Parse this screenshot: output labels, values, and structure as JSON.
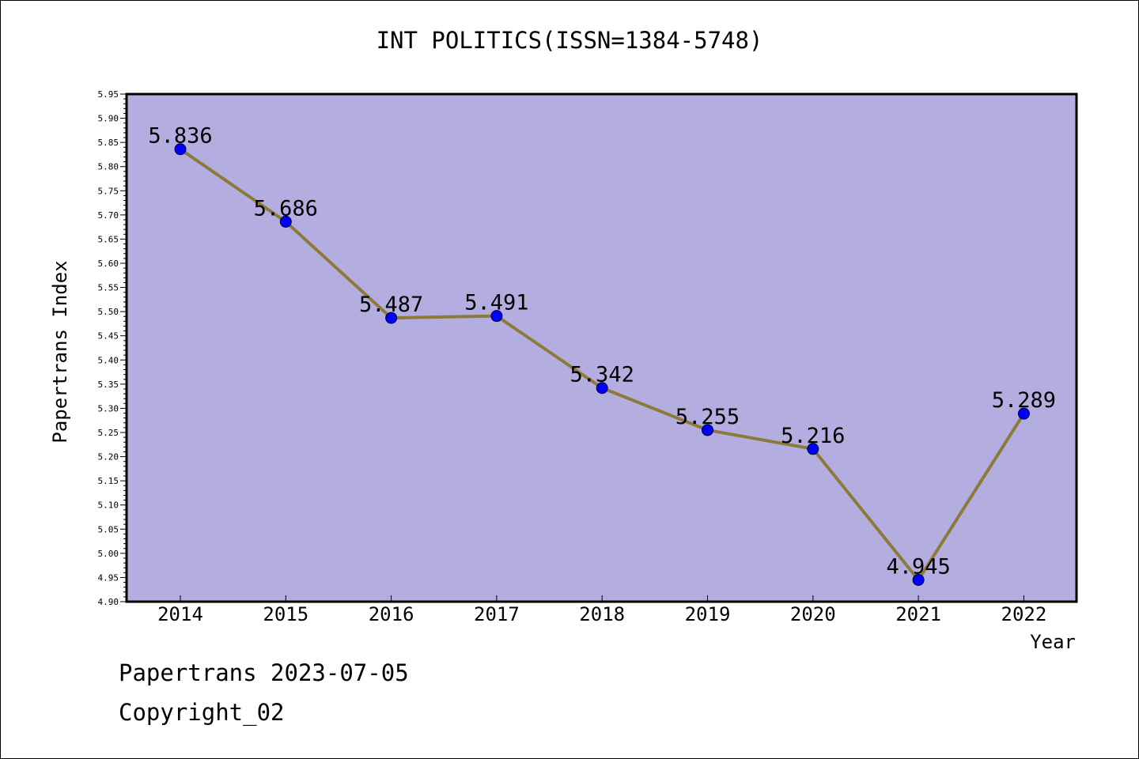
{
  "chart_data": {
    "type": "line",
    "title": "INT POLITICS(ISSN=1384-5748)",
    "xlabel": "Year",
    "ylabel": "Papertrans Index",
    "categories": [
      "2014",
      "2015",
      "2016",
      "2017",
      "2018",
      "2019",
      "2020",
      "2021",
      "2022"
    ],
    "series": [
      {
        "values": [
          5.836,
          5.686,
          5.487,
          5.491,
          5.342,
          5.255,
          5.216,
          4.945,
          5.289
        ],
        "labels": [
          "5.836",
          "5.686",
          "5.487",
          "5.491",
          "5.342",
          "5.255",
          "5.216",
          "4.945",
          "5.289"
        ]
      }
    ],
    "ylim": [
      4.9,
      5.95
    ],
    "yticks": [
      "4.90",
      "4.95",
      "5.00",
      "5.05",
      "5.10",
      "5.15",
      "5.20",
      "5.25",
      "5.30",
      "5.35",
      "5.40",
      "5.45",
      "5.50",
      "5.55",
      "5.60",
      "5.65",
      "5.70",
      "5.75",
      "5.80",
      "5.85",
      "5.90",
      "5.95"
    ],
    "grid": false,
    "colors": {
      "plot_background": "#b4aee0",
      "line": "#8b7a3a",
      "marker": "#0000ff"
    }
  },
  "footer": {
    "line1": "Papertrans 2023-07-05",
    "line2": "Copyright_02"
  }
}
